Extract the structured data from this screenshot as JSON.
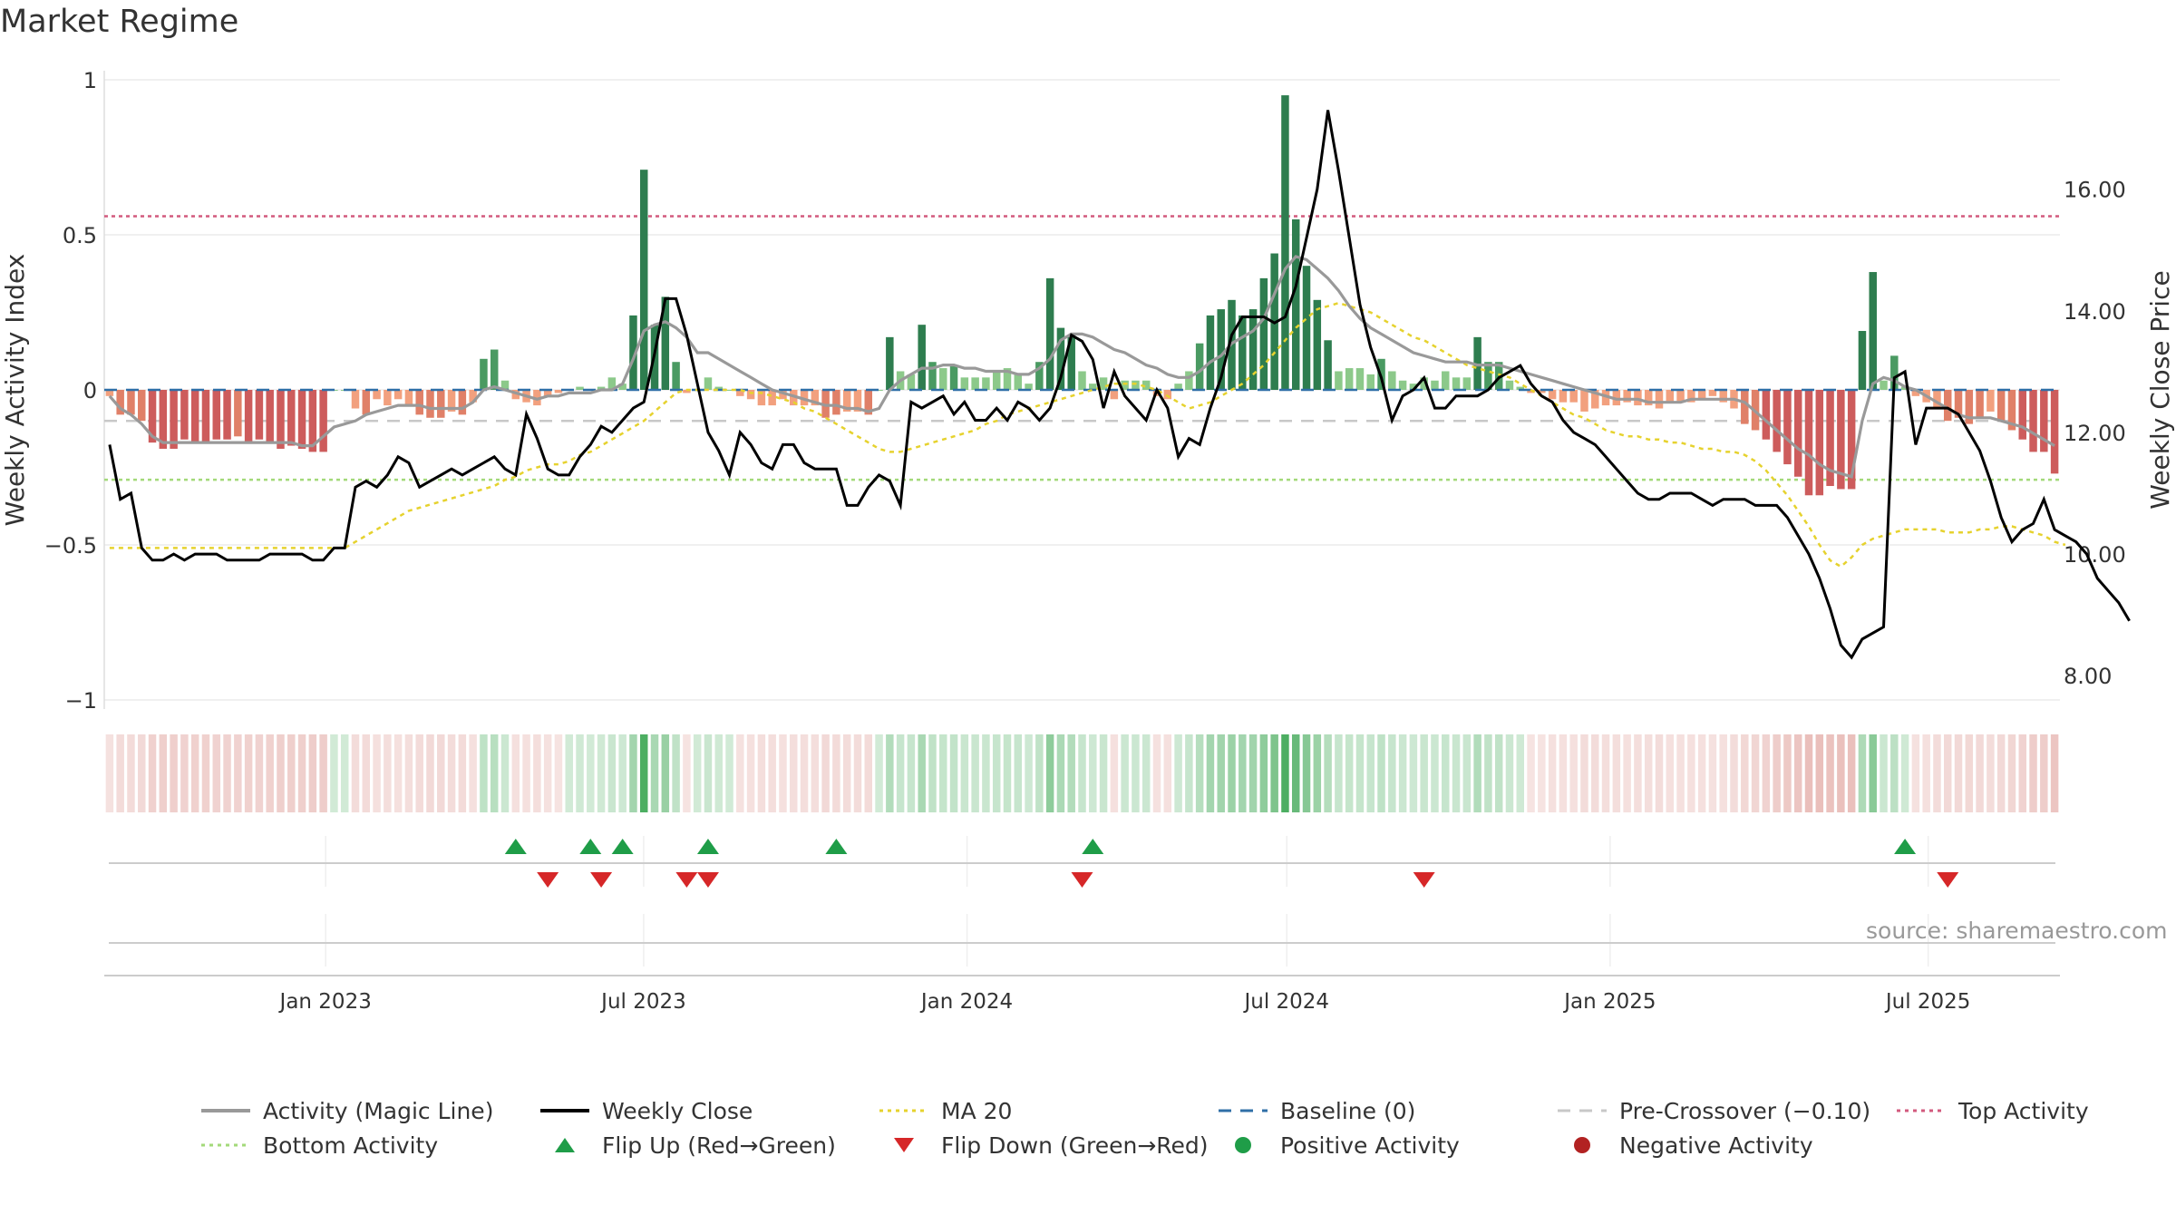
{
  "page": {
    "title": "Market Regime",
    "source": "source: sharemaestro.com"
  },
  "chart_data": {
    "type": "bar",
    "title": "Market Regime",
    "x_tick_labels": [
      "Jan 2023",
      "Jul 2023",
      "Jan 2024",
      "Jul 2024",
      "Jan 2025",
      "Jul 2025"
    ],
    "x_tick_dates": [
      "2023-01-01",
      "2023-07-01",
      "2024-01-01",
      "2024-07-01",
      "2025-01-01",
      "2025-07-01"
    ],
    "x_range": [
      "2022-08-28",
      "2025-09-14"
    ],
    "left_axis": {
      "label": "Weekly Activity Index",
      "ylim": [
        -1,
        1
      ],
      "ticks": [
        1,
        0.5,
        0,
        -0.5,
        -1
      ],
      "tick_labels": [
        "1",
        "0.5",
        "0",
        "−0.5",
        "−1"
      ]
    },
    "right_axis": {
      "label": "Weekly Close Price",
      "ylim": [
        7.6,
        17.8
      ],
      "ticks": [
        16,
        14,
        12,
        10,
        8
      ],
      "tick_labels": [
        "16.00",
        "14.00",
        "12.00",
        "10.00",
        "8.00"
      ]
    },
    "reference_lines": {
      "baseline": 0,
      "pre_crossover": -0.1,
      "top_activity": 0.56,
      "bottom_activity": -0.29
    },
    "activity_bars": [
      -0.02,
      -0.08,
      -0.08,
      -0.1,
      -0.17,
      -0.19,
      -0.19,
      -0.16,
      -0.17,
      -0.17,
      -0.16,
      -0.16,
      -0.15,
      -0.17,
      -0.16,
      -0.17,
      -0.19,
      -0.18,
      -0.19,
      -0.2,
      -0.2,
      0,
      0,
      -0.06,
      -0.08,
      -0.03,
      -0.05,
      -0.03,
      -0.05,
      -0.08,
      -0.09,
      -0.09,
      -0.07,
      -0.08,
      -0.04,
      0.1,
      0.13,
      0.03,
      -0.03,
      -0.04,
      -0.05,
      -0.02,
      -0.01,
      0,
      0.01,
      0,
      0.01,
      0.04,
      0.02,
      0.24,
      0.71,
      0.21,
      0.3,
      0.09,
      -0.01,
      0,
      0.04,
      0.01,
      0,
      -0.02,
      -0.03,
      -0.05,
      -0.05,
      -0.03,
      -0.05,
      -0.05,
      -0.05,
      -0.09,
      -0.08,
      -0.07,
      -0.07,
      -0.08,
      0,
      0.17,
      0.06,
      0.05,
      0.21,
      0.09,
      0.07,
      0.08,
      0.04,
      0.04,
      0.04,
      0.06,
      0.07,
      0.05,
      0.02,
      0.09,
      0.36,
      0.2,
      0.17,
      0.06,
      0.02,
      0.04,
      -0.03,
      0.03,
      0.03,
      0.03,
      -0.02,
      -0.03,
      0.02,
      0.06,
      0.15,
      0.24,
      0.26,
      0.29,
      0.24,
      0.26,
      0.36,
      0.44,
      0.95,
      0.55,
      0.4,
      0.29,
      0.16,
      0.06,
      0.07,
      0.07,
      0.05,
      0.1,
      0.06,
      0.03,
      0.02,
      0.04,
      0.03,
      0.06,
      0.04,
      0.04,
      0.17,
      0.09,
      0.09,
      0.03,
      0.01,
      -0.01,
      -0.01,
      -0.03,
      -0.04,
      -0.04,
      -0.07,
      -0.06,
      -0.05,
      -0.05,
      -0.04,
      -0.05,
      -0.05,
      -0.06,
      -0.04,
      -0.04,
      -0.04,
      -0.03,
      -0.02,
      -0.04,
      -0.06,
      -0.11,
      -0.13,
      -0.16,
      -0.2,
      -0.24,
      -0.28,
      -0.34,
      -0.34,
      -0.31,
      -0.32,
      -0.32,
      0.19,
      0.38,
      0.03,
      0.11,
      0.01,
      -0.02,
      -0.04,
      -0.06,
      -0.1,
      -0.09,
      -0.11,
      -0.09,
      -0.07,
      -0.1,
      -0.13,
      -0.16,
      -0.2,
      -0.2,
      -0.27
    ],
    "weekly_close": [
      11.8,
      10.9,
      11.0,
      10.1,
      9.9,
      9.9,
      10.0,
      9.9,
      10.0,
      10.0,
      10.0,
      9.9,
      9.9,
      9.9,
      9.9,
      10.0,
      10.0,
      10.0,
      10.0,
      9.9,
      9.9,
      10.1,
      10.1,
      11.1,
      11.2,
      11.1,
      11.3,
      11.6,
      11.5,
      11.1,
      11.2,
      11.3,
      11.4,
      11.3,
      11.4,
      11.5,
      11.6,
      11.4,
      11.3,
      12.3,
      11.9,
      11.4,
      11.3,
      11.3,
      11.6,
      11.8,
      12.1,
      12.0,
      12.2,
      12.4,
      12.5,
      13.3,
      14.2,
      14.2,
      13.6,
      12.8,
      12.0,
      11.7,
      11.3,
      12.0,
      11.8,
      11.5,
      11.4,
      11.8,
      11.8,
      11.5,
      11.4,
      11.4,
      11.4,
      10.8,
      10.8,
      11.1,
      11.3,
      11.2,
      10.8,
      12.5,
      12.4,
      12.5,
      12.6,
      12.3,
      12.5,
      12.2,
      12.2,
      12.4,
      12.2,
      12.5,
      12.4,
      12.2,
      12.4,
      12.9,
      13.6,
      13.5,
      13.2,
      12.4,
      13.0,
      12.6,
      12.4,
      12.2,
      12.7,
      12.4,
      11.6,
      11.9,
      11.8,
      12.4,
      12.9,
      13.6,
      13.9,
      13.9,
      13.9,
      13.8,
      13.9,
      14.4,
      15.2,
      16.0,
      17.3,
      16.3,
      15.2,
      14.1,
      13.4,
      12.9,
      12.2,
      12.6,
      12.7,
      12.9,
      12.4,
      12.4,
      12.6,
      12.6,
      12.6,
      12.7,
      12.9,
      13.0,
      13.1,
      12.8,
      12.6,
      12.5,
      12.2,
      12.0,
      11.9,
      11.8,
      11.6,
      11.4,
      11.2,
      11.0,
      10.9,
      10.9,
      11.0,
      11.0,
      11.0,
      10.9,
      10.8,
      10.9,
      10.9,
      10.9,
      10.8,
      10.8,
      10.8,
      10.6,
      10.3,
      10.0,
      9.6,
      9.1,
      8.5,
      8.3,
      8.6,
      8.7,
      8.8,
      12.9,
      13.0,
      11.8,
      12.4,
      12.4,
      12.4,
      12.3,
      12.0,
      11.7,
      11.2,
      10.6,
      10.2,
      10.4,
      10.5,
      10.9,
      10.4,
      10.3,
      10.2,
      10.0,
      9.6,
      9.4,
      9.2,
      8.9
    ],
    "magic_line": [
      -0.02,
      -0.06,
      -0.08,
      -0.11,
      -0.15,
      -0.17,
      -0.17,
      -0.17,
      -0.17,
      -0.17,
      -0.17,
      -0.17,
      -0.17,
      -0.17,
      -0.17,
      -0.17,
      -0.17,
      -0.17,
      -0.18,
      -0.18,
      -0.15,
      -0.12,
      -0.11,
      -0.1,
      -0.08,
      -0.07,
      -0.06,
      -0.05,
      -0.05,
      -0.05,
      -0.06,
      -0.06,
      -0.06,
      -0.06,
      -0.04,
      0,
      0.01,
      0,
      -0.01,
      -0.02,
      -0.03,
      -0.02,
      -0.02,
      -0.01,
      -0.01,
      -0.01,
      0,
      0,
      0.02,
      0.1,
      0.19,
      0.21,
      0.22,
      0.2,
      0.17,
      0.12,
      0.12,
      0.1,
      0.08,
      0.06,
      0.04,
      0.02,
      0,
      -0.01,
      -0.02,
      -0.03,
      -0.04,
      -0.05,
      -0.05,
      -0.06,
      -0.06,
      -0.07,
      -0.06,
      0,
      0.03,
      0.05,
      0.07,
      0.07,
      0.08,
      0.08,
      0.07,
      0.07,
      0.06,
      0.06,
      0.06,
      0.05,
      0.05,
      0.07,
      0.1,
      0.16,
      0.18,
      0.18,
      0.17,
      0.15,
      0.13,
      0.12,
      0.1,
      0.08,
      0.07,
      0.05,
      0.04,
      0.04,
      0.06,
      0.09,
      0.11,
      0.15,
      0.17,
      0.19,
      0.23,
      0.31,
      0.39,
      0.43,
      0.42,
      0.39,
      0.36,
      0.32,
      0.27,
      0.23,
      0.2,
      0.18,
      0.16,
      0.14,
      0.12,
      0.11,
      0.1,
      0.09,
      0.09,
      0.09,
      0.08,
      0.08,
      0.08,
      0.07,
      0.06,
      0.05,
      0.04,
      0.03,
      0.02,
      0.01,
      0,
      -0.01,
      -0.02,
      -0.03,
      -0.03,
      -0.03,
      -0.04,
      -0.04,
      -0.04,
      -0.04,
      -0.03,
      -0.03,
      -0.03,
      -0.03,
      -0.03,
      -0.04,
      -0.07,
      -0.1,
      -0.13,
      -0.16,
      -0.19,
      -0.21,
      -0.24,
      -0.26,
      -0.27,
      -0.28,
      -0.1,
      0.02,
      0.04,
      0.03,
      0.01,
      0,
      -0.02,
      -0.04,
      -0.06,
      -0.08,
      -0.09,
      -0.09,
      -0.09,
      -0.1,
      -0.11,
      -0.12,
      -0.14,
      -0.16,
      -0.18
    ],
    "ma20": [
      -0.51,
      -0.51,
      -0.51,
      -0.51,
      -0.51,
      -0.51,
      -0.51,
      -0.51,
      -0.51,
      -0.51,
      -0.51,
      -0.51,
      -0.51,
      -0.51,
      -0.51,
      -0.51,
      -0.51,
      -0.51,
      -0.51,
      -0.51,
      -0.51,
      -0.51,
      -0.51,
      -0.49,
      -0.47,
      -0.45,
      -0.43,
      -0.41,
      -0.39,
      -0.38,
      -0.37,
      -0.36,
      -0.35,
      -0.34,
      -0.33,
      -0.32,
      -0.31,
      -0.29,
      -0.28,
      -0.26,
      -0.25,
      -0.24,
      -0.24,
      -0.23,
      -0.21,
      -0.2,
      -0.18,
      -0.16,
      -0.14,
      -0.12,
      -0.1,
      -0.07,
      -0.04,
      -0.01,
      0,
      0,
      0,
      0,
      0,
      0,
      -0.01,
      -0.01,
      -0.02,
      -0.03,
      -0.04,
      -0.06,
      -0.07,
      -0.09,
      -0.11,
      -0.13,
      -0.15,
      -0.17,
      -0.19,
      -0.2,
      -0.2,
      -0.19,
      -0.18,
      -0.17,
      -0.16,
      -0.15,
      -0.14,
      -0.13,
      -0.11,
      -0.1,
      -0.08,
      -0.07,
      -0.06,
      -0.05,
      -0.04,
      -0.03,
      -0.02,
      -0.01,
      0,
      0.01,
      0.02,
      0.02,
      0.02,
      0.01,
      0,
      -0.02,
      -0.04,
      -0.06,
      -0.05,
      -0.04,
      -0.02,
      0,
      0.02,
      0.05,
      0.08,
      0.12,
      0.16,
      0.2,
      0.23,
      0.26,
      0.27,
      0.28,
      0.27,
      0.26,
      0.25,
      0.23,
      0.21,
      0.19,
      0.17,
      0.16,
      0.14,
      0.12,
      0.1,
      0.08,
      0.07,
      0.06,
      0.05,
      0.04,
      0.02,
      0,
      -0.02,
      -0.04,
      -0.06,
      -0.08,
      -0.09,
      -0.11,
      -0.13,
      -0.14,
      -0.15,
      -0.15,
      -0.16,
      -0.16,
      -0.17,
      -0.17,
      -0.18,
      -0.19,
      -0.19,
      -0.2,
      -0.2,
      -0.21,
      -0.23,
      -0.26,
      -0.3,
      -0.34,
      -0.39,
      -0.44,
      -0.5,
      -0.55,
      -0.57,
      -0.54,
      -0.5,
      -0.48,
      -0.47,
      -0.46,
      -0.45,
      -0.45,
      -0.45,
      -0.45,
      -0.46,
      -0.46,
      -0.46,
      -0.45,
      -0.45,
      -0.44,
      -0.44,
      -0.45,
      -0.46,
      -0.47,
      -0.49,
      -0.5
    ],
    "flip_up_weeks": [
      38,
      45,
      48,
      56,
      68,
      92,
      168
    ],
    "flip_down_weeks": [
      41,
      46,
      54,
      56,
      91,
      123,
      172
    ]
  },
  "legend": {
    "items": [
      {
        "label": "Activity (Magic Line)",
        "symbol": "line",
        "color": "#999999"
      },
      {
        "label": "Weekly Close",
        "symbol": "line",
        "color": "#000000"
      },
      {
        "label": "MA 20",
        "symbol": "dotted",
        "color": "#e6d22e"
      },
      {
        "label": "Baseline (0)",
        "symbol": "dashed",
        "color": "#2f6fa7"
      },
      {
        "label": "Pre-Crossover (−0.10)",
        "symbol": "dashed",
        "color": "#c8c8c8"
      },
      {
        "label": "Top Activity",
        "symbol": "dotted",
        "color": "#d25a7e"
      },
      {
        "label": "Bottom Activity",
        "symbol": "dotted",
        "color": "#a3d97a"
      },
      {
        "label": "Flip Up (Red→Green)",
        "symbol": "triangle-up",
        "color": "#1f9d48"
      },
      {
        "label": "Flip Down (Green→Red)",
        "symbol": "triangle-down",
        "color": "#d62728"
      },
      {
        "label": "Positive Activity",
        "symbol": "circle",
        "color": "#1f9d48"
      },
      {
        "label": "Negative Activity",
        "symbol": "circle",
        "color": "#b22222"
      }
    ]
  }
}
